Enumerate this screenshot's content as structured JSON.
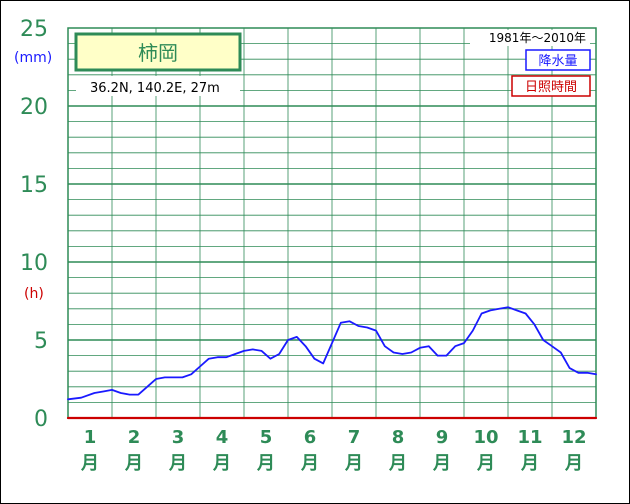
{
  "chart_data": {
    "type": "line",
    "station": "柿岡",
    "coords": "36.2N,  140.2E,  27m",
    "period": "1981年〜2010年",
    "units": {
      "precip": "(mm)",
      "sunshine": "(h)"
    },
    "legend": [
      {
        "name": "降水量",
        "color": "#1a1aff"
      },
      {
        "name": "日照時間",
        "color": "#cc0000"
      }
    ],
    "yticks": [
      "0",
      "5",
      "10",
      "15",
      "20",
      "25"
    ],
    "ylim": [
      0,
      25
    ],
    "months": [
      {
        "num": "1",
        "label": "月"
      },
      {
        "num": "2",
        "label": "月"
      },
      {
        "num": "3",
        "label": "月"
      },
      {
        "num": "4",
        "label": "月"
      },
      {
        "num": "5",
        "label": "月"
      },
      {
        "num": "6",
        "label": "月"
      },
      {
        "num": "7",
        "label": "月"
      },
      {
        "num": "8",
        "label": "月"
      },
      {
        "num": "9",
        "label": "月"
      },
      {
        "num": "10",
        "label": "月"
      },
      {
        "num": "11",
        "label": "月"
      },
      {
        "num": "12",
        "label": "月"
      }
    ],
    "grid": true,
    "series": [
      {
        "name": "降水量",
        "color": "#1a1aff",
        "x": [
          0.0,
          0.3,
          0.6,
          0.8,
          1.0,
          1.2,
          1.4,
          1.6,
          1.8,
          2.0,
          2.2,
          2.4,
          2.6,
          2.8,
          3.0,
          3.2,
          3.4,
          3.6,
          3.8,
          4.0,
          4.2,
          4.4,
          4.6,
          4.8,
          5.0,
          5.2,
          5.4,
          5.6,
          5.8,
          6.0,
          6.2,
          6.4,
          6.6,
          6.8,
          7.0,
          7.2,
          7.4,
          7.6,
          7.8,
          8.0,
          8.2,
          8.4,
          8.6,
          8.8,
          9.0,
          9.2,
          9.4,
          9.6,
          9.8,
          10.0,
          10.2,
          10.4,
          10.6,
          10.8,
          11.0,
          11.2,
          11.4,
          11.6,
          11.8,
          12.0
        ],
        "y": [
          1.2,
          1.3,
          1.6,
          1.7,
          1.8,
          1.6,
          1.5,
          1.5,
          2.0,
          2.5,
          2.6,
          2.6,
          2.6,
          2.8,
          3.3,
          3.8,
          3.9,
          3.9,
          4.1,
          4.3,
          4.4,
          4.3,
          3.8,
          4.1,
          5.0,
          5.2,
          4.6,
          3.8,
          3.5,
          4.8,
          6.1,
          6.2,
          5.9,
          5.8,
          5.6,
          4.6,
          4.2,
          4.1,
          4.2,
          4.5,
          4.6,
          4.0,
          4.0,
          4.6,
          4.8,
          5.6,
          6.7,
          6.9,
          7.0,
          7.1,
          6.9,
          6.7,
          6.0,
          5.0,
          4.6,
          4.2,
          3.2,
          2.9,
          2.9,
          2.8
        ]
      },
      {
        "name": "日照時間",
        "color": "#cc0000",
        "x": [
          0.0,
          12.0
        ],
        "y": [
          0.0,
          0.0
        ]
      }
    ]
  }
}
